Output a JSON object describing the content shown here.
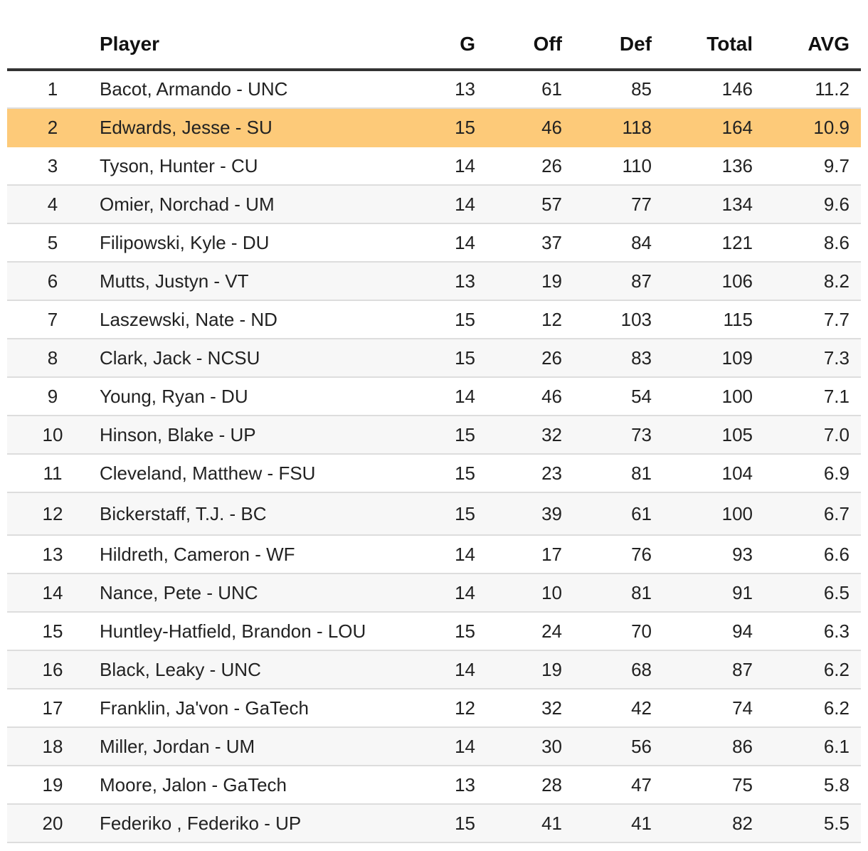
{
  "chart_data": {
    "type": "table",
    "columns": [
      "",
      "Player",
      "G",
      "Off",
      "Def",
      "Total",
      "AVG"
    ],
    "highlight_rank": 2,
    "highlight_color": "#fdca79",
    "rows": [
      {
        "rank": "1",
        "player": "Bacot, Armando - UNC",
        "g": "13",
        "off": "61",
        "def": "85",
        "total": "146",
        "avg": "11.2"
      },
      {
        "rank": "2",
        "player": "Edwards, Jesse - SU",
        "g": "15",
        "off": "46",
        "def": "118",
        "total": "164",
        "avg": "10.9"
      },
      {
        "rank": "3",
        "player": "Tyson, Hunter - CU",
        "g": "14",
        "off": "26",
        "def": "110",
        "total": "136",
        "avg": "9.7"
      },
      {
        "rank": "4",
        "player": "Omier, Norchad - UM",
        "g": "14",
        "off": "57",
        "def": "77",
        "total": "134",
        "avg": "9.6"
      },
      {
        "rank": "5",
        "player": "Filipowski, Kyle - DU",
        "g": "14",
        "off": "37",
        "def": "84",
        "total": "121",
        "avg": "8.6"
      },
      {
        "rank": "6",
        "player": "Mutts, Justyn - VT",
        "g": "13",
        "off": "19",
        "def": "87",
        "total": "106",
        "avg": "8.2"
      },
      {
        "rank": "7",
        "player": "Laszewski, Nate - ND",
        "g": "15",
        "off": "12",
        "def": "103",
        "total": "115",
        "avg": "7.7"
      },
      {
        "rank": "8",
        "player": "Clark, Jack - NCSU",
        "g": "15",
        "off": "26",
        "def": "83",
        "total": "109",
        "avg": "7.3"
      },
      {
        "rank": "9",
        "player": "Young, Ryan - DU",
        "g": "14",
        "off": "46",
        "def": "54",
        "total": "100",
        "avg": "7.1"
      },
      {
        "rank": "10",
        "player": "Hinson, Blake - UP",
        "g": "15",
        "off": "32",
        "def": "73",
        "total": "105",
        "avg": "7.0"
      },
      {
        "rank": "11",
        "player": "Cleveland, Matthew - FSU",
        "g": "15",
        "off": "23",
        "def": "81",
        "total": "104",
        "avg": "6.9"
      },
      {
        "rank": "12",
        "player": "Bickerstaff, T.J. - BC",
        "g": "15",
        "off": "39",
        "def": "61",
        "total": "100",
        "avg": "6.7"
      },
      {
        "rank": "13",
        "player": "Hildreth, Cameron - WF",
        "g": "14",
        "off": "17",
        "def": "76",
        "total": "93",
        "avg": "6.6"
      },
      {
        "rank": "14",
        "player": "Nance, Pete - UNC",
        "g": "14",
        "off": "10",
        "def": "81",
        "total": "91",
        "avg": "6.5"
      },
      {
        "rank": "15",
        "player": "Huntley-Hatfield, Brandon - LOU",
        "g": "15",
        "off": "24",
        "def": "70",
        "total": "94",
        "avg": "6.3"
      },
      {
        "rank": "16",
        "player": "Black, Leaky - UNC",
        "g": "14",
        "off": "19",
        "def": "68",
        "total": "87",
        "avg": "6.2"
      },
      {
        "rank": "17",
        "player": "Franklin, Ja'von - GaTech",
        "g": "12",
        "off": "32",
        "def": "42",
        "total": "74",
        "avg": "6.2"
      },
      {
        "rank": "18",
        "player": "Miller, Jordan - UM",
        "g": "14",
        "off": "30",
        "def": "56",
        "total": "86",
        "avg": "6.1"
      },
      {
        "rank": "19",
        "player": "Moore, Jalon - GaTech",
        "g": "13",
        "off": "28",
        "def": "47",
        "total": "75",
        "avg": "5.8"
      },
      {
        "rank": "20",
        "player": "Federiko , Federiko - UP",
        "g": "15",
        "off": "41",
        "def": "41",
        "total": "82",
        "avg": "5.5"
      }
    ]
  }
}
